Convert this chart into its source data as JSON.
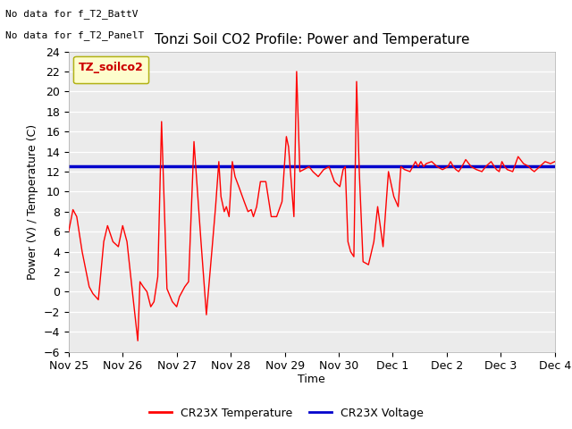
{
  "title": "Tonzi Soil CO2 Profile: Power and Temperature",
  "ylabel": "Power (V) / Temperature (C)",
  "xlabel": "Time",
  "text_no_data_1": "No data for f_T2_BattV",
  "text_no_data_2": "No data for f_T2_PanelT",
  "legend_box_label": "TZ_soilco2",
  "ylim": [
    -6,
    24
  ],
  "yticks": [
    -6,
    -4,
    -2,
    0,
    2,
    4,
    6,
    8,
    10,
    12,
    14,
    16,
    18,
    20,
    22,
    24
  ],
  "blue_line_y": 12.5,
  "fig_bg_color": "#ffffff",
  "plot_bg_color": "#ebebeb",
  "red_line_color": "#ff0000",
  "blue_line_color": "#0000cc",
  "legend_red_label": "CR23X Temperature",
  "legend_blue_label": "CR23X Voltage",
  "temp_x": [
    0.0,
    0.08,
    0.15,
    0.25,
    0.38,
    0.45,
    0.55,
    0.65,
    0.72,
    0.82,
    0.92,
    1.0,
    1.08,
    1.18,
    1.28,
    1.32,
    1.38,
    1.45,
    1.52,
    1.58,
    1.65,
    1.72,
    1.82,
    1.92,
    2.0,
    2.05,
    2.1,
    2.15,
    2.22,
    2.32,
    2.45,
    2.55,
    2.65,
    2.72,
    2.78,
    2.82,
    2.88,
    2.92,
    2.97,
    3.03,
    3.08,
    3.15,
    3.25,
    3.32,
    3.38,
    3.42,
    3.48,
    3.55,
    3.65,
    3.75,
    3.85,
    3.95,
    4.03,
    4.07,
    4.12,
    4.17,
    4.22,
    4.28,
    4.35,
    4.45,
    4.52,
    4.62,
    4.72,
    4.82,
    4.92,
    5.02,
    5.08,
    5.12,
    5.17,
    5.22,
    5.28,
    5.33,
    5.38,
    5.45,
    5.55,
    5.65,
    5.72,
    5.82,
    5.92,
    6.02,
    6.1,
    6.15,
    6.22,
    6.32,
    6.42,
    6.47,
    6.52,
    6.57,
    6.62,
    6.72,
    6.82,
    6.92,
    7.02,
    7.07,
    7.12,
    7.17,
    7.22,
    7.28,
    7.35,
    7.45,
    7.55,
    7.65,
    7.72,
    7.82,
    7.88,
    7.92,
    7.97,
    8.02,
    8.07,
    8.12,
    8.22,
    8.32,
    8.42,
    8.52,
    8.57,
    8.62,
    8.72,
    8.82,
    8.92,
    9.0
  ],
  "temp_y": [
    6.0,
    8.2,
    7.5,
    4.0,
    0.5,
    -0.2,
    -0.8,
    5.0,
    6.6,
    5.0,
    4.5,
    6.6,
    5.0,
    0.0,
    -4.9,
    1.0,
    0.5,
    0.0,
    -1.5,
    -1.0,
    1.5,
    17.0,
    0.3,
    -1.0,
    -1.5,
    -0.5,
    0.0,
    0.5,
    1.0,
    15.0,
    5.0,
    -2.3,
    4.0,
    8.5,
    13.0,
    9.5,
    8.0,
    8.5,
    7.5,
    13.0,
    11.5,
    10.5,
    9.0,
    8.0,
    8.2,
    7.5,
    8.5,
    11.0,
    11.0,
    7.5,
    7.5,
    9.0,
    15.5,
    14.5,
    11.0,
    7.5,
    22.0,
    12.0,
    12.2,
    12.5,
    12.0,
    11.5,
    12.2,
    12.5,
    11.0,
    10.5,
    12.2,
    12.5,
    5.0,
    4.0,
    3.5,
    21.0,
    12.0,
    3.0,
    2.7,
    5.0,
    8.5,
    4.5,
    12.0,
    9.5,
    8.5,
    12.5,
    12.2,
    12.0,
    13.0,
    12.5,
    13.0,
    12.5,
    12.8,
    13.0,
    12.5,
    12.2,
    12.5,
    13.0,
    12.5,
    12.2,
    12.0,
    12.5,
    13.2,
    12.5,
    12.2,
    12.0,
    12.5,
    13.0,
    12.5,
    12.2,
    12.0,
    13.0,
    12.5,
    12.2,
    12.0,
    13.5,
    12.8,
    12.5,
    12.2,
    12.0,
    12.5,
    13.0,
    12.8,
    13.0
  ],
  "x_tick_labels": [
    "Nov 25",
    "Nov 26",
    "Nov 27",
    "Nov 28",
    "Nov 29",
    "Nov 30",
    "Dec 1",
    "Dec 2",
    "Dec 3",
    "Dec 4"
  ],
  "x_tick_positions": [
    0,
    1,
    2,
    3,
    4,
    5,
    6,
    7,
    8,
    9
  ]
}
